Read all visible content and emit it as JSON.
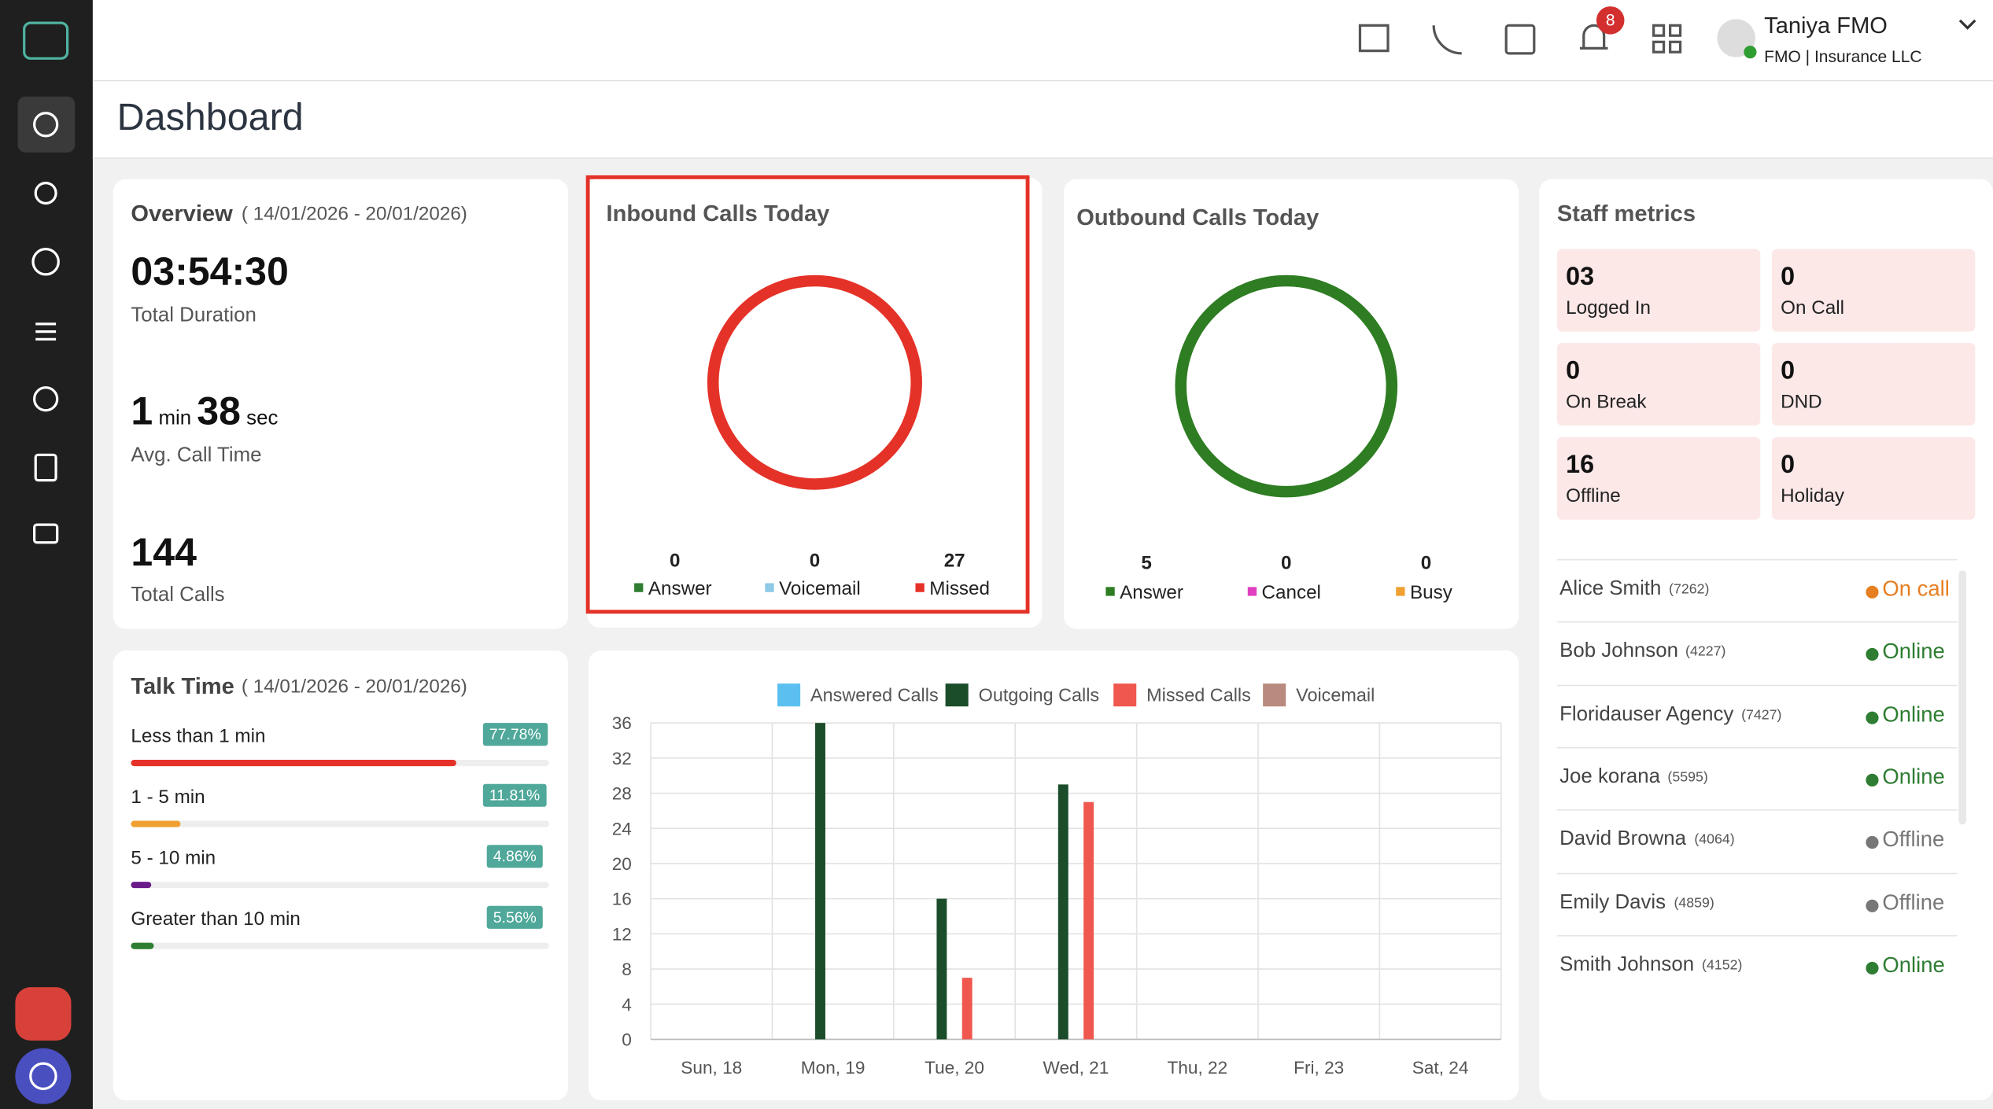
{
  "header": {
    "user_name": "Taniya FMO",
    "user_role": "FMO | Insurance LLC",
    "notifications": 8
  },
  "page_title": "Dashboard",
  "overview": {
    "title": "Overview",
    "range": "( 14/01/2026 - 20/01/2026)",
    "duration": "03:54:30",
    "duration_label": "Total Duration",
    "avg_min": 1,
    "min_unit": "min",
    "avg_sec": 38,
    "sec_unit": "sec",
    "avg_label": "Avg. Call Time",
    "total_calls": 144,
    "total_label": "Total Calls"
  },
  "inbound": {
    "title": "Inbound Calls Today",
    "items": [
      {
        "name": "Answer",
        "value": 0,
        "color": "#2e7d32"
      },
      {
        "name": "Voicemail",
        "value": 0,
        "color": "#8ecae6"
      },
      {
        "name": "Missed",
        "value": 27,
        "color": "#e53228"
      }
    ]
  },
  "outbound": {
    "title": "Outbound Calls Today",
    "items": [
      {
        "name": "Answer",
        "value": 5,
        "color": "#2e7d22"
      },
      {
        "name": "Cancel",
        "value": 0,
        "color": "#e040c0"
      },
      {
        "name": "Busy",
        "value": 0,
        "color": "#f0a030"
      }
    ]
  },
  "staff": {
    "title": "Staff metrics",
    "tiles": [
      {
        "value": "03",
        "label": "Logged In"
      },
      {
        "value": 0,
        "label": "On Call"
      },
      {
        "value": 0,
        "label": "On Break"
      },
      {
        "value": 0,
        "label": "DND"
      },
      {
        "value": 16,
        "label": "Offline"
      },
      {
        "value": 0,
        "label": "Holiday"
      }
    ],
    "members": [
      {
        "name": "Alice Smith",
        "ext": "(7262)",
        "status": "On call",
        "color": "#e67e22"
      },
      {
        "name": "Bob Johnson",
        "ext": "(4227)",
        "status": "Online",
        "color": "#2e7d32"
      },
      {
        "name": "Floridauser Agency",
        "ext": "(7427)",
        "status": "Online",
        "color": "#2e7d32"
      },
      {
        "name": "Joe korana",
        "ext": "(5595)",
        "status": "Online",
        "color": "#2e7d32"
      },
      {
        "name": "David Browna",
        "ext": "(4064)",
        "status": "Offline",
        "color": "#777777"
      },
      {
        "name": "Emily Davis",
        "ext": "(4859)",
        "status": "Offline",
        "color": "#777777"
      },
      {
        "name": "Smith Johnson",
        "ext": "(4152)",
        "status": "Online",
        "color": "#2e7d32"
      }
    ]
  },
  "talk_time": {
    "title": "Talk Time",
    "range": "( 14/01/2026 - 20/01/2026)",
    "rows": [
      {
        "label": "Less than 1 min",
        "value": 77.78,
        "value_label": "77.78%",
        "color": "#e53228"
      },
      {
        "label": "1 - 5 min",
        "value": 11.81,
        "value_label": "11.81%",
        "color": "#f0a030"
      },
      {
        "label": "5 - 10 min",
        "value": 4.86,
        "value_label": "4.86%",
        "color": "#6a1b8a"
      },
      {
        "label": "Greater than 10 min",
        "value": 5.56,
        "value_label": "5.56%",
        "color": "#2e7d32"
      }
    ]
  },
  "chart_data": {
    "type": "bar",
    "categories": [
      "Sun, 18",
      "Mon, 19",
      "Tue, 20",
      "Wed, 21",
      "Thu, 22",
      "Fri, 23",
      "Sat, 24"
    ],
    "series": [
      {
        "name": "Answered Calls",
        "color": "#5bc0f0",
        "values": [
          0,
          0,
          0,
          0,
          0,
          0,
          0
        ]
      },
      {
        "name": "Outgoing Calls",
        "color": "#1b4d2a",
        "values": [
          0,
          36,
          16,
          29,
          0,
          0,
          0
        ]
      },
      {
        "name": "Missed Calls",
        "color": "#f0584f",
        "values": [
          0,
          0,
          7,
          27,
          0,
          0,
          0
        ]
      },
      {
        "name": "Voicemail",
        "color": "#b98a7e",
        "values": [
          0,
          0,
          0,
          0,
          0,
          0,
          0
        ]
      }
    ],
    "ylim": [
      0,
      36
    ],
    "yticks": [
      0,
      4,
      8,
      12,
      16,
      20,
      24,
      28,
      32,
      36
    ],
    "grid": true
  }
}
